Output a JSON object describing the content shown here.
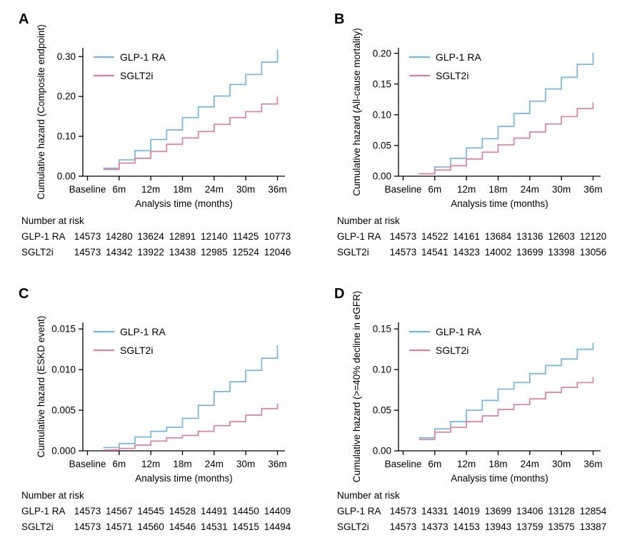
{
  "figure": {
    "background": "#ffffff",
    "axis_color": "#000000",
    "text_color": "#000000",
    "series_colors": {
      "glp1_ra": "#72b5e2",
      "sglt2i": "#e27f9e"
    }
  },
  "chart_data": [
    {
      "type": "line",
      "subtype": "cumulative-hazard-step",
      "panel_label": "A",
      "ylabel": "Cumulative hazard (Composite endpoint)",
      "xlabel": "Analysis time (months)",
      "x_ticks": [
        0,
        6,
        12,
        18,
        24,
        30,
        36
      ],
      "x_tick_labels": [
        "Baseline",
        "6m",
        "12m",
        "18m",
        "24m",
        "30m",
        "36m"
      ],
      "y_ticks": [
        0,
        0.1,
        0.2,
        0.3
      ],
      "y_tick_labels": [
        "0.00",
        "0.10",
        "0.20",
        "0.30"
      ],
      "ylim": [
        0,
        0.322
      ],
      "xlim": [
        -1,
        38
      ],
      "grid": false,
      "legend_position": "top-left-inside",
      "step_times": [
        3,
        6,
        9,
        12,
        15,
        18,
        21,
        24,
        27,
        30,
        33,
        36
      ],
      "series": [
        {
          "name": "GLP-1 RA",
          "color": "#72b5e2",
          "values": [
            0.02,
            0.041,
            0.064,
            0.092,
            0.116,
            0.147,
            0.174,
            0.201,
            0.23,
            0.255,
            0.286,
            0.317
          ]
        },
        {
          "name": "SGLT2i",
          "color": "#e27f9e",
          "values": [
            0.017,
            0.033,
            0.045,
            0.062,
            0.08,
            0.096,
            0.112,
            0.13,
            0.147,
            0.162,
            0.181,
            0.2
          ]
        }
      ],
      "number_at_risk": {
        "title": "Number at risk",
        "rows": [
          {
            "label": "GLP-1 RA",
            "values": [
              14573,
              14280,
              13624,
              12891,
              12140,
              11425,
              10773
            ]
          },
          {
            "label": "SGLT2i",
            "values": [
              14573,
              14342,
              13922,
              13438,
              12985,
              12524,
              12046
            ]
          }
        ]
      }
    },
    {
      "type": "line",
      "subtype": "cumulative-hazard-step",
      "panel_label": "B",
      "ylabel": "Cumulative hazard (All-cause mortality)",
      "xlabel": "Analysis time (months)",
      "x_ticks": [
        0,
        6,
        12,
        18,
        24,
        30,
        36
      ],
      "x_tick_labels": [
        "Baseline",
        "6m",
        "12m",
        "18m",
        "24m",
        "30m",
        "36m"
      ],
      "y_ticks": [
        0,
        0.05,
        0.1,
        0.15,
        0.2
      ],
      "y_tick_labels": [
        "0.00",
        "0.05",
        "0.10",
        "0.15",
        "0.20"
      ],
      "ylim": [
        0,
        0.209
      ],
      "xlim": [
        -1,
        38
      ],
      "grid": false,
      "legend_position": "top-left-inside",
      "step_times": [
        3,
        6,
        9,
        12,
        15,
        18,
        21,
        24,
        27,
        30,
        33,
        36
      ],
      "series": [
        {
          "name": "GLP-1 RA",
          "color": "#72b5e2",
          "values": [
            0.004,
            0.015,
            0.029,
            0.046,
            0.061,
            0.081,
            0.102,
            0.122,
            0.142,
            0.161,
            0.182,
            0.201
          ]
        },
        {
          "name": "SGLT2i",
          "color": "#e27f9e",
          "values": [
            0.004,
            0.01,
            0.017,
            0.028,
            0.039,
            0.051,
            0.062,
            0.072,
            0.085,
            0.097,
            0.11,
            0.12
          ]
        }
      ],
      "number_at_risk": {
        "title": "Number at risk",
        "rows": [
          {
            "label": "GLP-1 RA",
            "values": [
              14573,
              14522,
              14161,
              13684,
              13136,
              12603,
              12120
            ]
          },
          {
            "label": "SGLT2i",
            "values": [
              14573,
              14541,
              14323,
              14002,
              13699,
              13398,
              13056
            ]
          }
        ]
      }
    },
    {
      "type": "line",
      "subtype": "cumulative-hazard-step",
      "panel_label": "C",
      "ylabel": "Cumulative hazard (ESKD event)",
      "xlabel": "Analysis time (months)",
      "x_ticks": [
        0,
        6,
        12,
        18,
        24,
        30,
        36
      ],
      "x_tick_labels": [
        "Baseline",
        "6m",
        "12m",
        "18m",
        "24m",
        "30m",
        "36m"
      ],
      "y_ticks": [
        0,
        0.005,
        0.01,
        0.015
      ],
      "y_tick_labels": [
        "0.000",
        "0.005",
        "0.010",
        "0.015"
      ],
      "ylim": [
        0,
        0.0158
      ],
      "xlim": [
        -1,
        38
      ],
      "grid": false,
      "legend_position": "top-left-inside",
      "step_times": [
        3,
        6,
        9,
        12,
        15,
        18,
        21,
        24,
        27,
        30,
        33,
        36
      ],
      "series": [
        {
          "name": "GLP-1 RA",
          "color": "#72b5e2",
          "values": [
            0.0004,
            0.0009,
            0.0017,
            0.0024,
            0.0029,
            0.004,
            0.0056,
            0.0073,
            0.0085,
            0.0099,
            0.0114,
            0.013
          ]
        },
        {
          "name": "SGLT2i",
          "color": "#e27f9e",
          "values": [
            0.0001,
            0.0003,
            0.0007,
            0.0012,
            0.0016,
            0.0019,
            0.0024,
            0.0031,
            0.0036,
            0.0044,
            0.0052,
            0.0058
          ]
        }
      ],
      "number_at_risk": {
        "title": "Number at risk",
        "rows": [
          {
            "label": "GLP-1 RA",
            "values": [
              14573,
              14567,
              14545,
              14528,
              14491,
              14450,
              14409
            ]
          },
          {
            "label": "SGLT2i",
            "values": [
              14573,
              14571,
              14560,
              14546,
              14531,
              14515,
              14494
            ]
          }
        ]
      }
    },
    {
      "type": "line",
      "subtype": "cumulative-hazard-step",
      "panel_label": "D",
      "ylabel": "Cumulative hazard (>=40% decline in eGFR)",
      "xlabel": "Analysis time (months)",
      "x_ticks": [
        0,
        6,
        12,
        18,
        24,
        30,
        36
      ],
      "x_tick_labels": [
        "Baseline",
        "6m",
        "12m",
        "18m",
        "24m",
        "30m",
        "36m"
      ],
      "y_ticks": [
        0,
        0.05,
        0.1,
        0.15
      ],
      "y_tick_labels": [
        "0.00",
        "0.05",
        "0.10",
        "0.15"
      ],
      "ylim": [
        0,
        0.158
      ],
      "xlim": [
        -1,
        38
      ],
      "grid": false,
      "legend_position": "top-left-inside",
      "step_times": [
        3,
        6,
        9,
        12,
        15,
        18,
        21,
        24,
        27,
        30,
        33,
        36
      ],
      "series": [
        {
          "name": "GLP-1 RA",
          "color": "#72b5e2",
          "values": [
            0.016,
            0.027,
            0.036,
            0.05,
            0.062,
            0.076,
            0.084,
            0.095,
            0.105,
            0.113,
            0.125,
            0.133
          ]
        },
        {
          "name": "SGLT2i",
          "color": "#e27f9e",
          "values": [
            0.014,
            0.023,
            0.029,
            0.036,
            0.043,
            0.051,
            0.057,
            0.064,
            0.072,
            0.078,
            0.084,
            0.091
          ]
        }
      ],
      "number_at_risk": {
        "title": "Number at risk",
        "rows": [
          {
            "label": "GLP-1 RA",
            "values": [
              14573,
              14331,
              14019,
              13699,
              13406,
              13128,
              12854
            ]
          },
          {
            "label": "SGLT2i",
            "values": [
              14573,
              14373,
              14153,
              13943,
              13759,
              13575,
              13387
            ]
          }
        ]
      }
    }
  ]
}
